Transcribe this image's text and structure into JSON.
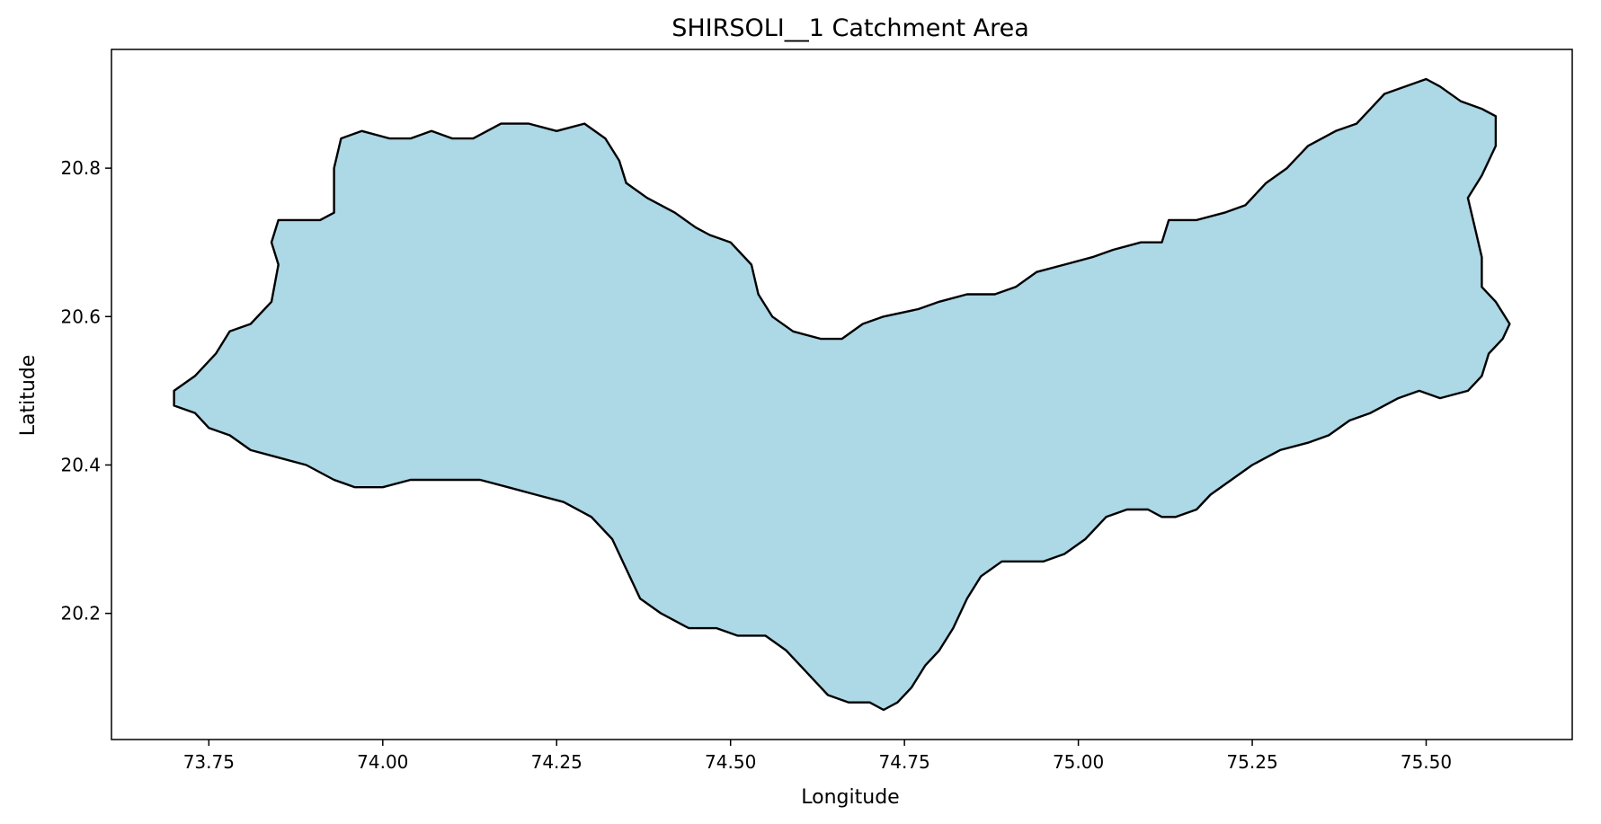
{
  "chart_data": {
    "type": "map",
    "title": "SHIRSOLI__1 Catchment Area",
    "xlabel": "Longitude",
    "ylabel": "Latitude",
    "xlim": [
      73.61,
      75.71
    ],
    "ylim": [
      20.03,
      20.96
    ],
    "x_ticks": [
      73.75,
      74.0,
      74.25,
      74.5,
      74.75,
      75.0,
      75.25,
      75.5
    ],
    "x_tick_labels": [
      "73.75",
      "74.00",
      "74.25",
      "74.50",
      "74.75",
      "75.00",
      "75.25",
      "75.50"
    ],
    "y_ticks": [
      20.2,
      20.4,
      20.6,
      20.8
    ],
    "y_tick_labels": [
      "20.2",
      "20.4",
      "20.6",
      "20.8"
    ],
    "grid": false,
    "fill_color": "#add8e6",
    "edge_color": "#000000",
    "boundary": [
      [
        73.7,
        20.5
      ],
      [
        73.73,
        20.52
      ],
      [
        73.76,
        20.55
      ],
      [
        73.78,
        20.58
      ],
      [
        73.81,
        20.59
      ],
      [
        73.84,
        20.62
      ],
      [
        73.85,
        20.67
      ],
      [
        73.84,
        20.7
      ],
      [
        73.85,
        20.73
      ],
      [
        73.88,
        20.73
      ],
      [
        73.91,
        20.73
      ],
      [
        73.93,
        20.74
      ],
      [
        73.93,
        20.77
      ],
      [
        73.93,
        20.8
      ],
      [
        73.94,
        20.84
      ],
      [
        73.97,
        20.85
      ],
      [
        74.01,
        20.84
      ],
      [
        74.04,
        20.84
      ],
      [
        74.07,
        20.85
      ],
      [
        74.1,
        20.84
      ],
      [
        74.13,
        20.84
      ],
      [
        74.15,
        20.85
      ],
      [
        74.17,
        20.86
      ],
      [
        74.21,
        20.86
      ],
      [
        74.25,
        20.85
      ],
      [
        74.29,
        20.86
      ],
      [
        74.32,
        20.84
      ],
      [
        74.34,
        20.81
      ],
      [
        74.35,
        20.78
      ],
      [
        74.38,
        20.76
      ],
      [
        74.42,
        20.74
      ],
      [
        74.45,
        20.72
      ],
      [
        74.47,
        20.71
      ],
      [
        74.5,
        20.7
      ],
      [
        74.53,
        20.67
      ],
      [
        74.54,
        20.63
      ],
      [
        74.56,
        20.6
      ],
      [
        74.59,
        20.58
      ],
      [
        74.63,
        20.57
      ],
      [
        74.66,
        20.57
      ],
      [
        74.69,
        20.59
      ],
      [
        74.72,
        20.6
      ],
      [
        74.77,
        20.61
      ],
      [
        74.8,
        20.62
      ],
      [
        74.84,
        20.63
      ],
      [
        74.88,
        20.63
      ],
      [
        74.91,
        20.64
      ],
      [
        74.94,
        20.66
      ],
      [
        74.98,
        20.67
      ],
      [
        75.02,
        20.68
      ],
      [
        75.05,
        20.69
      ],
      [
        75.09,
        20.7
      ],
      [
        75.12,
        20.7
      ],
      [
        75.13,
        20.73
      ],
      [
        75.17,
        20.73
      ],
      [
        75.21,
        20.74
      ],
      [
        75.24,
        20.75
      ],
      [
        75.27,
        20.78
      ],
      [
        75.3,
        20.8
      ],
      [
        75.33,
        20.83
      ],
      [
        75.37,
        20.85
      ],
      [
        75.4,
        20.86
      ],
      [
        75.42,
        20.88
      ],
      [
        75.44,
        20.9
      ],
      [
        75.47,
        20.91
      ],
      [
        75.5,
        20.92
      ],
      [
        75.52,
        20.91
      ],
      [
        75.55,
        20.89
      ],
      [
        75.58,
        20.88
      ],
      [
        75.6,
        20.87
      ],
      [
        75.6,
        20.83
      ],
      [
        75.58,
        20.79
      ],
      [
        75.56,
        20.76
      ],
      [
        75.57,
        20.72
      ],
      [
        75.58,
        20.68
      ],
      [
        75.58,
        20.64
      ],
      [
        75.6,
        20.62
      ],
      [
        75.62,
        20.59
      ],
      [
        75.61,
        20.57
      ],
      [
        75.59,
        20.55
      ],
      [
        75.58,
        20.52
      ],
      [
        75.56,
        20.5
      ],
      [
        75.52,
        20.49
      ],
      [
        75.49,
        20.5
      ],
      [
        75.46,
        20.49
      ],
      [
        75.42,
        20.47
      ],
      [
        75.39,
        20.46
      ],
      [
        75.36,
        20.44
      ],
      [
        75.33,
        20.43
      ],
      [
        75.29,
        20.42
      ],
      [
        75.25,
        20.4
      ],
      [
        75.22,
        20.38
      ],
      [
        75.19,
        20.36
      ],
      [
        75.17,
        20.34
      ],
      [
        75.14,
        20.33
      ],
      [
        75.12,
        20.33
      ],
      [
        75.1,
        20.34
      ],
      [
        75.07,
        20.34
      ],
      [
        75.04,
        20.33
      ],
      [
        75.01,
        20.3
      ],
      [
        74.98,
        20.28
      ],
      [
        74.95,
        20.27
      ],
      [
        74.92,
        20.27
      ],
      [
        74.89,
        20.27
      ],
      [
        74.86,
        20.25
      ],
      [
        74.84,
        20.22
      ],
      [
        74.82,
        20.18
      ],
      [
        74.8,
        20.15
      ],
      [
        74.78,
        20.13
      ],
      [
        74.76,
        20.1
      ],
      [
        74.74,
        20.08
      ],
      [
        74.72,
        20.07
      ],
      [
        74.7,
        20.08
      ],
      [
        74.67,
        20.08
      ],
      [
        74.64,
        20.09
      ],
      [
        74.61,
        20.12
      ],
      [
        74.58,
        20.15
      ],
      [
        74.55,
        20.17
      ],
      [
        74.51,
        20.17
      ],
      [
        74.48,
        20.18
      ],
      [
        74.44,
        20.18
      ],
      [
        74.4,
        20.2
      ],
      [
        74.37,
        20.22
      ],
      [
        74.35,
        20.26
      ],
      [
        74.33,
        20.3
      ],
      [
        74.3,
        20.33
      ],
      [
        74.26,
        20.35
      ],
      [
        74.22,
        20.36
      ],
      [
        74.18,
        20.37
      ],
      [
        74.14,
        20.38
      ],
      [
        74.09,
        20.38
      ],
      [
        74.04,
        20.38
      ],
      [
        74.0,
        20.37
      ],
      [
        73.96,
        20.37
      ],
      [
        73.93,
        20.38
      ],
      [
        73.89,
        20.4
      ],
      [
        73.85,
        20.41
      ],
      [
        73.81,
        20.42
      ],
      [
        73.78,
        20.44
      ],
      [
        73.75,
        20.45
      ],
      [
        73.73,
        20.47
      ],
      [
        73.7,
        20.48
      ]
    ]
  }
}
